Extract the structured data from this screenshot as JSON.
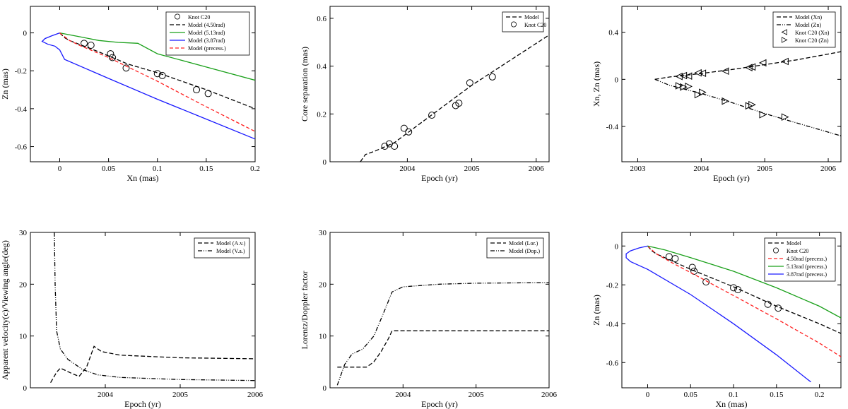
{
  "chart_data": [
    {
      "type": "scatter",
      "id": "p1",
      "xlabel": "Xn (mas)",
      "ylabel": "Zn (mas)",
      "xlim": [
        -0.03,
        0.2
      ],
      "ylim": [
        -0.68,
        0.14
      ],
      "xticks": [
        0,
        0.05,
        0.1,
        0.15,
        0.2
      ],
      "xticklabels": [
        "0",
        "0.05",
        "0.1",
        "0.15",
        "0.2"
      ],
      "yticks": [
        0,
        -0.2,
        -0.4,
        -0.6
      ],
      "yticklabels": [
        "0",
        "-0.2",
        "-0.4",
        "-0.6"
      ],
      "legend_position": "top-right",
      "series": [
        {
          "name": "Knot C20",
          "kind": "markers",
          "marker": "circle",
          "color": "#000000",
          "x": [
            0.025,
            0.032,
            0.052,
            0.054,
            0.068,
            0.1,
            0.105,
            0.14,
            0.152
          ],
          "y": [
            -0.055,
            -0.065,
            -0.11,
            -0.13,
            -0.185,
            -0.215,
            -0.225,
            -0.3,
            -0.32
          ]
        },
        {
          "name": "Model (4.50rad)",
          "kind": "line",
          "dash": "6,3",
          "color": "#000000",
          "x": [
            0,
            0.005,
            0.01,
            0.02,
            0.04,
            0.07,
            0.1,
            0.15,
            0.2
          ],
          "y": [
            0,
            -0.025,
            -0.04,
            -0.06,
            -0.1,
            -0.165,
            -0.21,
            -0.3,
            -0.4
          ]
        },
        {
          "name": "Model (5.13rad)",
          "kind": "line",
          "dash": "",
          "color": "#1aa01a",
          "x": [
            0,
            0.02,
            0.04,
            0.06,
            0.08,
            0.1,
            0.15,
            0.2
          ],
          "y": [
            0,
            -0.02,
            -0.04,
            -0.05,
            -0.055,
            -0.11,
            -0.18,
            -0.25
          ]
        },
        {
          "name": "Model (3.87rad)",
          "kind": "line",
          "dash": "",
          "color": "#1a1aff",
          "x": [
            0,
            -0.008,
            -0.015,
            -0.018,
            -0.012,
            -0.005,
            0.0,
            0.005,
            0.05,
            0.1,
            0.15,
            0.2
          ],
          "y": [
            0,
            -0.015,
            -0.03,
            -0.045,
            -0.06,
            -0.07,
            -0.09,
            -0.14,
            -0.24,
            -0.35,
            -0.455,
            -0.56
          ]
        },
        {
          "name": "Model (precess.)",
          "kind": "line",
          "dash": "5,3",
          "color": "#ff2020",
          "x": [
            0,
            0.01,
            0.02,
            0.05,
            0.1,
            0.15,
            0.2
          ],
          "y": [
            0,
            -0.04,
            -0.065,
            -0.13,
            -0.255,
            -0.39,
            -0.52
          ]
        }
      ]
    },
    {
      "type": "scatter",
      "id": "p2",
      "xlabel": "Epoch (yr)",
      "ylabel": "Core separation (mas)",
      "xlim": [
        2002.8,
        2006.2
      ],
      "ylim": [
        0,
        0.65
      ],
      "xticks": [
        2004,
        2005,
        2006
      ],
      "xticklabels": [
        "2004",
        "2005",
        "2006"
      ],
      "yticks": [
        0,
        0.2,
        0.4,
        0.6
      ],
      "yticklabels": [
        "0",
        "0.2",
        "0.4",
        "0.6"
      ],
      "legend_position": "top-right",
      "series": [
        {
          "name": "Model",
          "kind": "line",
          "dash": "6,3",
          "color": "#000000",
          "x": [
            2003.27,
            2003.35,
            2003.5,
            2003.8,
            2004.2,
            2005.0,
            2006.2
          ],
          "y": [
            0.0,
            0.03,
            0.045,
            0.08,
            0.16,
            0.32,
            0.53
          ]
        },
        {
          "name": "Knot C20",
          "kind": "markers",
          "marker": "circle",
          "color": "#000000",
          "x": [
            2003.65,
            2003.72,
            2003.8,
            2003.95,
            2004.02,
            2004.38,
            2004.75,
            2004.8,
            2004.97,
            2005.32
          ],
          "y": [
            0.065,
            0.075,
            0.065,
            0.14,
            0.125,
            0.195,
            0.235,
            0.245,
            0.33,
            0.355
          ]
        }
      ]
    },
    {
      "type": "scatter",
      "id": "p3",
      "xlabel": "Epoch (yr)",
      "ylabel": "Xn, Zn (mas)",
      "xlim": [
        2002.75,
        2006.2
      ],
      "ylim": [
        -0.7,
        0.62
      ],
      "xticks": [
        2003,
        2004,
        2005,
        2006
      ],
      "xticklabels": [
        "2003",
        "2004",
        "2005",
        "2006"
      ],
      "yticks": [
        0.4,
        0,
        -0.4
      ],
      "yticklabels": [
        "0.4",
        "0",
        "-0.4"
      ],
      "legend_position": "top-right",
      "series": [
        {
          "name": "Model (Xn)",
          "kind": "line",
          "dash": "6,3",
          "color": "#000000",
          "x": [
            2003.27,
            2003.5,
            2004.0,
            2004.5,
            2005.0,
            2005.5,
            2006.2
          ],
          "y": [
            0.0,
            0.02,
            0.05,
            0.085,
            0.125,
            0.165,
            0.235
          ]
        },
        {
          "name": "Model (Zn)",
          "kind": "line",
          "dash": "6,2,1,2,1,2",
          "color": "#000000",
          "x": [
            2003.27,
            2003.5,
            2004.0,
            2004.5,
            2005.0,
            2005.5,
            2006.2
          ],
          "y": [
            0.0,
            -0.05,
            -0.12,
            -0.2,
            -0.29,
            -0.37,
            -0.48
          ]
        },
        {
          "name": "Knot C20 (Xn)",
          "kind": "markers",
          "marker": "triangle-left",
          "color": "#000000",
          "x": [
            2003.65,
            2003.72,
            2003.8,
            2003.95,
            2004.02,
            2004.38,
            2004.75,
            2004.8,
            2004.97,
            2005.32
          ],
          "y": [
            0.025,
            0.032,
            0.028,
            0.055,
            0.052,
            0.07,
            0.1,
            0.105,
            0.14,
            0.152
          ]
        },
        {
          "name": "Knot C20 (Zn)",
          "kind": "markers",
          "marker": "triangle-right",
          "color": "#000000",
          "x": [
            2003.65,
            2003.72,
            2003.8,
            2003.95,
            2004.02,
            2004.38,
            2004.75,
            2004.8,
            2004.97,
            2005.32
          ],
          "y": [
            -0.055,
            -0.065,
            -0.06,
            -0.13,
            -0.11,
            -0.185,
            -0.225,
            -0.215,
            -0.3,
            -0.32
          ]
        }
      ]
    },
    {
      "type": "line",
      "id": "p4",
      "xlabel": "Epoch (yr)",
      "ylabel": "Apparent velocity(c)/Viewing angle(deg)",
      "xlim": [
        2003.0,
        2006.0
      ],
      "ylim": [
        0,
        30
      ],
      "xticks": [
        2004,
        2005,
        2006
      ],
      "xticklabels": [
        "2004",
        "2005",
        "2006"
      ],
      "yticks": [
        0,
        10,
        20,
        30
      ],
      "yticklabels": [
        "0",
        "10",
        "20",
        "30"
      ],
      "legend_position": "top-right",
      "series": [
        {
          "name": "Model (A.v.)",
          "kind": "line",
          "dash": "6,3",
          "color": "#000000",
          "x": [
            2003.27,
            2003.35,
            2003.4,
            2003.55,
            2003.65,
            2003.75,
            2003.85,
            2003.95,
            2004.2,
            2005.0,
            2006.0
          ],
          "y": [
            1.0,
            3.0,
            3.8,
            2.8,
            2.2,
            4.0,
            8.0,
            7.0,
            6.3,
            5.8,
            5.6
          ]
        },
        {
          "name": "Model (V.a.)",
          "kind": "line",
          "dash": "6,2,1,2,1,2",
          "color": "#000000",
          "x": [
            2003.32,
            2003.33,
            2003.35,
            2003.4,
            2003.5,
            2003.7,
            2003.9,
            2004.2,
            2005.0,
            2006.0
          ],
          "y": [
            30,
            20,
            11,
            7.5,
            5.5,
            3.5,
            2.5,
            2.0,
            1.6,
            1.4
          ]
        }
      ]
    },
    {
      "type": "line",
      "id": "p5",
      "xlabel": "Epoch (yr)",
      "ylabel": "Lorentz/Doppler factor",
      "xlim": [
        2003.0,
        2006.0
      ],
      "ylim": [
        0,
        30
      ],
      "xticks": [
        2004,
        2005,
        2006
      ],
      "xticklabels": [
        "2004",
        "2005",
        "2006"
      ],
      "yticks": [
        0,
        10,
        20,
        30
      ],
      "yticklabels": [
        "0",
        "10",
        "20",
        "30"
      ],
      "legend_position": "top-right",
      "series": [
        {
          "name": "Model (Lor.)",
          "kind": "line",
          "dash": "6,3",
          "color": "#000000",
          "x": [
            2003.1,
            2003.5,
            2003.6,
            2003.7,
            2003.8,
            2003.85,
            2004.0,
            2006.0
          ],
          "y": [
            4.0,
            4.0,
            5.0,
            7.0,
            9.5,
            11.0,
            11.0,
            11.0
          ]
        },
        {
          "name": "Model (Dop.)",
          "kind": "line",
          "dash": "6,2,1,2,1,2",
          "color": "#000000",
          "x": [
            2003.1,
            2003.15,
            2003.2,
            2003.3,
            2003.45,
            2003.6,
            2003.75,
            2003.85,
            2004.0,
            2004.5,
            2005.0,
            2006.0
          ],
          "y": [
            0.5,
            2.5,
            4.5,
            6.5,
            7.5,
            10.0,
            15.0,
            18.5,
            19.5,
            20.0,
            20.2,
            20.3
          ]
        }
      ]
    },
    {
      "type": "scatter",
      "id": "p6",
      "xlabel": "Xn (mas)",
      "ylabel": "Zn (mas)",
      "xlim": [
        -0.03,
        0.225
      ],
      "ylim": [
        -0.73,
        0.07
      ],
      "xticks": [
        0,
        0.05,
        0.1,
        0.15,
        0.2
      ],
      "xticklabels": [
        "0",
        "0.05",
        "0.1",
        "0.15",
        "0.2"
      ],
      "yticks": [
        0,
        -0.2,
        -0.4,
        -0.6
      ],
      "yticklabels": [
        "0",
        "-0.2",
        "-0.4",
        "-0.6"
      ],
      "legend_position": "top-right",
      "series": [
        {
          "name": "Model",
          "kind": "line",
          "dash": "6,3",
          "color": "#000000",
          "x": [
            0,
            0.005,
            0.01,
            0.02,
            0.05,
            0.1,
            0.15,
            0.2,
            0.225
          ],
          "y": [
            0,
            -0.025,
            -0.04,
            -0.06,
            -0.12,
            -0.21,
            -0.31,
            -0.4,
            -0.45
          ]
        },
        {
          "name": "Knot C20",
          "kind": "markers",
          "marker": "circle",
          "color": "#000000",
          "x": [
            0.025,
            0.032,
            0.052,
            0.054,
            0.068,
            0.1,
            0.105,
            0.14,
            0.152
          ],
          "y": [
            -0.055,
            -0.065,
            -0.11,
            -0.13,
            -0.185,
            -0.215,
            -0.225,
            -0.3,
            -0.32
          ]
        },
        {
          "name": "4.50rad (precess.)",
          "kind": "line",
          "dash": "5,3",
          "color": "#ff2020",
          "x": [
            0,
            0.01,
            0.03,
            0.06,
            0.1,
            0.15,
            0.2,
            0.225
          ],
          "y": [
            0,
            -0.04,
            -0.09,
            -0.16,
            -0.255,
            -0.375,
            -0.5,
            -0.57
          ]
        },
        {
          "name": "5.13rad (precess.)",
          "kind": "line",
          "dash": "",
          "color": "#1aa01a",
          "x": [
            0,
            0.02,
            0.05,
            0.1,
            0.15,
            0.2,
            0.225
          ],
          "y": [
            0,
            -0.02,
            -0.06,
            -0.13,
            -0.215,
            -0.31,
            -0.37
          ]
        },
        {
          "name": "3.87rad (precess.)",
          "kind": "line",
          "dash": "",
          "color": "#1a1aff",
          "x": [
            0,
            -0.01,
            -0.02,
            -0.025,
            -0.025,
            -0.02,
            -0.01,
            0.0,
            0.05,
            0.1,
            0.15,
            0.19
          ],
          "y": [
            0,
            -0.01,
            -0.025,
            -0.04,
            -0.06,
            -0.08,
            -0.1,
            -0.12,
            -0.25,
            -0.4,
            -0.56,
            -0.7
          ]
        }
      ]
    }
  ]
}
